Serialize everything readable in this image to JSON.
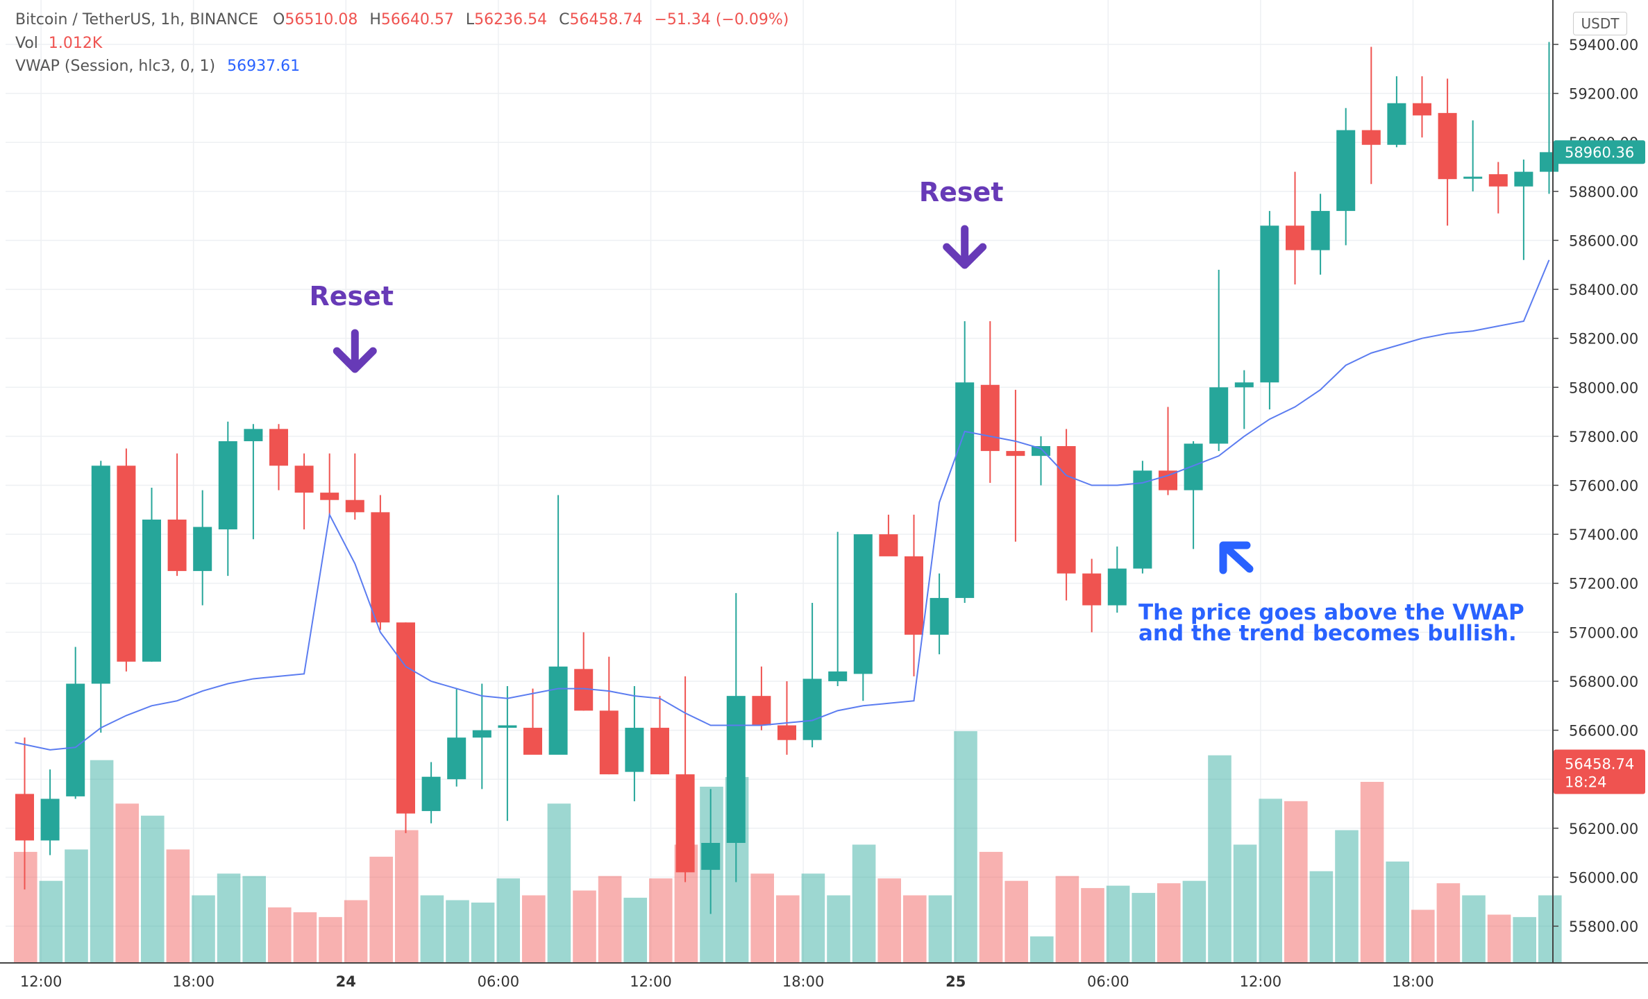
{
  "legend": {
    "symbol": "Bitcoin / TetherUS, 1h, BINANCE",
    "o_label": "O",
    "o": "56510.08",
    "h_label": "H",
    "h": "56640.57",
    "l_label": "L",
    "l": "56236.54",
    "c_label": "C",
    "c": "56458.74",
    "change": "−51.34 (−0.09%)",
    "vol_label": "Vol",
    "vol": "1.012K",
    "vwap_label": "VWAP (Session, hlc3, 0, 1)",
    "vwap": "56937.61"
  },
  "unit": "USDT",
  "colors": {
    "up": "#26a69a",
    "down": "#ef5350",
    "vwap": "#5b7cf0",
    "annotation": "#673ab7",
    "note": "#2962ff"
  },
  "chart_data": {
    "type": "candlestick",
    "y_ticks": [
      "55800.00",
      "56000.00",
      "56200.00",
      "56400.00",
      "56600.00",
      "56800.00",
      "57000.00",
      "57200.00",
      "57400.00",
      "57600.00",
      "57800.00",
      "58000.00",
      "58200.00",
      "58400.00",
      "58600.00",
      "58800.00",
      "59000.00",
      "59200.00",
      "59400.00"
    ],
    "ylim": [
      55650,
      59500
    ],
    "x_ticks": [
      {
        "label": "12:00",
        "bar": 1,
        "bold": false
      },
      {
        "label": "18:00",
        "bar": 7,
        "bold": false
      },
      {
        "label": "24",
        "bar": 13,
        "bold": true
      },
      {
        "label": "06:00",
        "bar": 19,
        "bold": false
      },
      {
        "label": "12:00",
        "bar": 25,
        "bold": false
      },
      {
        "label": "18:00",
        "bar": 31,
        "bold": false
      },
      {
        "label": "25",
        "bar": 37,
        "bold": true
      },
      {
        "label": "06:00",
        "bar": 43,
        "bold": false
      },
      {
        "label": "12:00",
        "bar": 49,
        "bold": false
      },
      {
        "label": "18:00",
        "bar": 55,
        "bold": false
      }
    ],
    "candles": [
      [
        56340,
        56570,
        55950,
        56150
      ],
      [
        56150,
        56440,
        56090,
        56320
      ],
      [
        56330,
        56940,
        56320,
        56790
      ],
      [
        56790,
        57700,
        56590,
        57680
      ],
      [
        57680,
        57750,
        56840,
        56880
      ],
      [
        56880,
        57590,
        56880,
        57460
      ],
      [
        57460,
        57730,
        57230,
        57250
      ],
      [
        57250,
        57580,
        57110,
        57430
      ],
      [
        57420,
        57860,
        57230,
        57780
      ],
      [
        57780,
        57850,
        57380,
        57830
      ],
      [
        57830,
        57850,
        57580,
        57680
      ],
      [
        57680,
        57730,
        57420,
        57570
      ],
      [
        57570,
        57730,
        57470,
        57540
      ],
      [
        57540,
        57730,
        57460,
        57490
      ],
      [
        57490,
        57560,
        57010,
        57040
      ],
      [
        57040,
        57040,
        56180,
        56260
      ],
      [
        56270,
        56470,
        56220,
        56410
      ],
      [
        56400,
        56770,
        56370,
        56570
      ],
      [
        56570,
        56790,
        56360,
        56600
      ],
      [
        56610,
        56780,
        56230,
        56620
      ],
      [
        56610,
        56770,
        56510,
        56500
      ],
      [
        56500,
        57560,
        56510,
        56860
      ],
      [
        56850,
        57000,
        56680,
        56680
      ],
      [
        56680,
        56900,
        56420,
        56420
      ],
      [
        56430,
        56780,
        56310,
        56610
      ],
      [
        56610,
        56740,
        56420,
        56420
      ],
      [
        56420,
        56820,
        55980,
        56020
      ],
      [
        56030,
        56360,
        55850,
        56140
      ],
      [
        56140,
        57160,
        55980,
        56740
      ],
      [
        56740,
        56860,
        56600,
        56620
      ],
      [
        56620,
        56800,
        56500,
        56560
      ],
      [
        56560,
        57120,
        56530,
        56810
      ],
      [
        56800,
        57410,
        56780,
        56840
      ],
      [
        56830,
        57390,
        56720,
        57400
      ],
      [
        57400,
        57480,
        57320,
        57310
      ],
      [
        57310,
        57480,
        56820,
        56990
      ],
      [
        56990,
        57240,
        56910,
        57140
      ],
      [
        57140,
        58270,
        57120,
        58020
      ],
      [
        58010,
        58270,
        57610,
        57740
      ],
      [
        57740,
        57990,
        57370,
        57720
      ],
      [
        57720,
        57800,
        57600,
        57760
      ],
      [
        57760,
        57830,
        57130,
        57240
      ],
      [
        57240,
        57300,
        57000,
        57110
      ],
      [
        57110,
        57350,
        57080,
        57260
      ],
      [
        57260,
        57700,
        57240,
        57660
      ],
      [
        57660,
        57920,
        57560,
        57580
      ],
      [
        57580,
        57780,
        57340,
        57770
      ],
      [
        57770,
        58480,
        57740,
        58000
      ],
      [
        58000,
        58070,
        57830,
        58020
      ],
      [
        58020,
        58720,
        57910,
        58660
      ],
      [
        58660,
        58880,
        58420,
        58560
      ],
      [
        58560,
        58790,
        58460,
        58720
      ],
      [
        58720,
        59140,
        58580,
        59050
      ],
      [
        59050,
        59390,
        58830,
        58990
      ],
      [
        58990,
        59270,
        58980,
        59160
      ],
      [
        59160,
        59270,
        59020,
        59110
      ],
      [
        59120,
        59260,
        58660,
        58850
      ],
      [
        58860,
        59090,
        58800,
        58860
      ],
      [
        58870,
        58920,
        58710,
        58820
      ],
      [
        58820,
        58930,
        58520,
        58880
      ],
      [
        58880,
        59410,
        58790,
        58960
      ]
    ],
    "volume": [
      0.46,
      0.34,
      0.47,
      0.84,
      0.66,
      0.61,
      0.47,
      0.28,
      0.37,
      0.36,
      0.23,
      0.21,
      0.19,
      0.26,
      0.44,
      0.55,
      0.28,
      0.26,
      0.25,
      0.35,
      0.28,
      0.66,
      0.3,
      0.36,
      0.27,
      0.35,
      0.49,
      0.73,
      0.77,
      0.37,
      0.28,
      0.37,
      0.28,
      0.49,
      0.35,
      0.28,
      0.28,
      0.96,
      0.46,
      0.34,
      0.11,
      0.36,
      0.31,
      0.32,
      0.29,
      0.33,
      0.34,
      0.86,
      0.49,
      0.68,
      0.67,
      0.38,
      0.55,
      0.75,
      0.42,
      0.22,
      0.33,
      0.28,
      0.2,
      0.19,
      0.28
    ],
    "vwap": [
      56550,
      56520,
      56530,
      56610,
      56660,
      56700,
      56720,
      56760,
      56790,
      56810,
      56820,
      56830,
      57480,
      57280,
      57000,
      56860,
      56800,
      56770,
      56740,
      56730,
      56750,
      56770,
      56770,
      56760,
      56740,
      56730,
      56670,
      56620,
      56620,
      56620,
      56630,
      56640,
      56680,
      56700,
      56710,
      56720,
      57530,
      57820,
      57800,
      57780,
      57750,
      57640,
      57600,
      57600,
      57610,
      57640,
      57680,
      57720,
      57800,
      57870,
      57920,
      57990,
      58090,
      58140,
      58170,
      58200,
      58220,
      58230,
      58250,
      58270,
      58520
    ],
    "last_price_up": {
      "value": "58960.36",
      "price": 58960.36
    },
    "last_price_down": {
      "value": "56458.74",
      "countdown": "18:24",
      "price": 56458.74
    },
    "annotations": [
      {
        "text": "Reset",
        "bar": 13
      },
      {
        "text": "Reset",
        "bar": 37
      }
    ],
    "note": {
      "line1": "The price goes above the VWAP",
      "line2": "and the trend becomes bullish."
    }
  }
}
